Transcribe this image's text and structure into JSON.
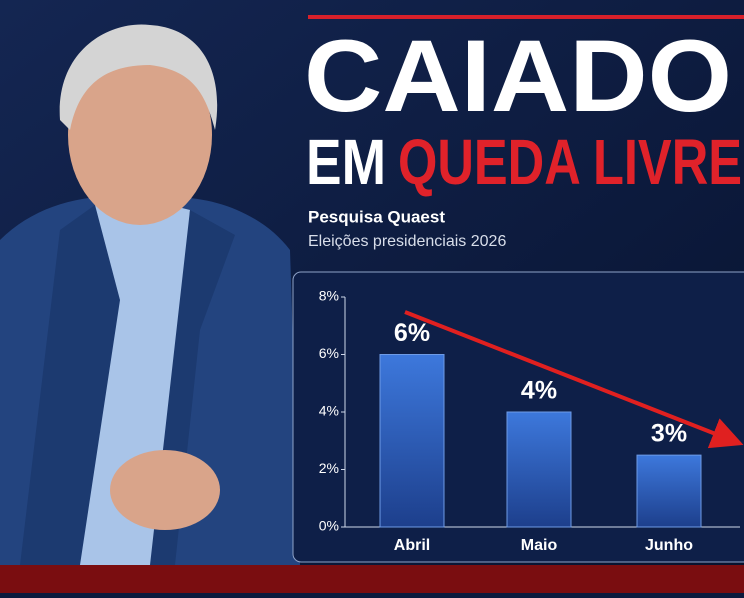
{
  "headline": {
    "line1": "CAIADO",
    "line2_white": "EM",
    "line2_red": "QUEDA LIVRE"
  },
  "chart_data": {
    "type": "bar",
    "title": "Pesquisa Quaest",
    "subtitle": "Eleições presidenciais 2026",
    "categories": [
      "Abril",
      "Maio",
      "Junho"
    ],
    "values": [
      6,
      4,
      2.5
    ],
    "value_labels": [
      "6%",
      "4%",
      "3%"
    ],
    "color": "#2f63c4",
    "ylim": [
      0,
      8
    ],
    "yticks": [
      {
        "value": 0,
        "label": "0%"
      },
      {
        "value": 2,
        "label": "2%"
      },
      {
        "value": 4,
        "label": "4%"
      },
      {
        "value": 6,
        "label": "6%"
      },
      {
        "value": 8,
        "label": "8%"
      }
    ],
    "grid": false
  }
}
